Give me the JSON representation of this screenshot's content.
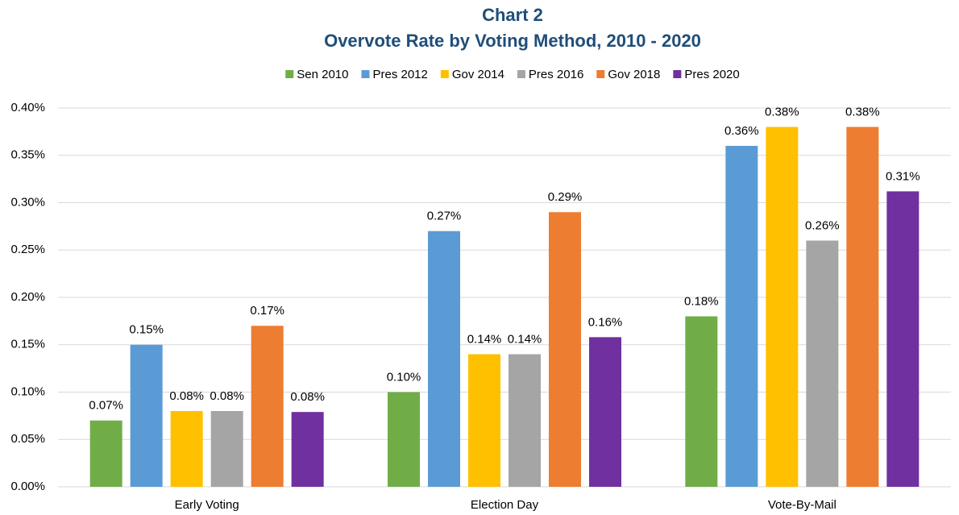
{
  "chart_data": {
    "type": "bar",
    "title": "Chart 2",
    "subtitle": "Overvote Rate by Voting Method, 2010 - 2020",
    "categories": [
      "Early Voting",
      "Election Day",
      "Vote-By-Mail"
    ],
    "series": [
      {
        "name": "Sen 2010",
        "color": "#70ad47",
        "values": [
          0.07,
          0.1,
          0.18
        ],
        "value_labels": [
          "0.07%",
          "0.10%",
          "0.18%"
        ]
      },
      {
        "name": "Pres 2012",
        "color": "#5b9bd5",
        "values": [
          0.15,
          0.27,
          0.36
        ],
        "value_labels": [
          "0.15%",
          "0.27%",
          "0.36%"
        ]
      },
      {
        "name": "Gov 2014",
        "color": "#ffc000",
        "values": [
          0.08,
          0.14,
          0.38
        ],
        "value_labels": [
          "0.08%",
          "0.14%",
          "0.38%"
        ]
      },
      {
        "name": "Pres 2016",
        "color": "#a5a5a5",
        "values": [
          0.08,
          0.14,
          0.26
        ],
        "value_labels": [
          "0.08%",
          "0.14%",
          "0.26%"
        ]
      },
      {
        "name": "Gov 2018",
        "color": "#ed7d31",
        "values": [
          0.17,
          0.29,
          0.38
        ],
        "value_labels": [
          "0.17%",
          "0.29%",
          "0.38%"
        ]
      },
      {
        "name": "Pres 2020",
        "color": "#7030a0",
        "values": [
          0.079,
          0.158,
          0.312
        ],
        "value_labels": [
          "0.08%",
          "0.16%",
          "0.31%"
        ]
      }
    ],
    "ylim": [
      0,
      0.4
    ],
    "yticks": [
      {
        "value": 0,
        "label": "0.00%"
      },
      {
        "value": 0.05,
        "label": "0.05%"
      },
      {
        "value": 0.1,
        "label": "0.10%"
      },
      {
        "value": 0.15,
        "label": "0.15%"
      },
      {
        "value": 0.2,
        "label": "0.20%"
      },
      {
        "value": 0.25,
        "label": "0.25%"
      },
      {
        "value": 0.3,
        "label": "0.30%"
      },
      {
        "value": 0.35,
        "label": "0.35%"
      },
      {
        "value": 0.4,
        "label": "0.40%"
      }
    ],
    "grid": true,
    "legend": "top"
  }
}
